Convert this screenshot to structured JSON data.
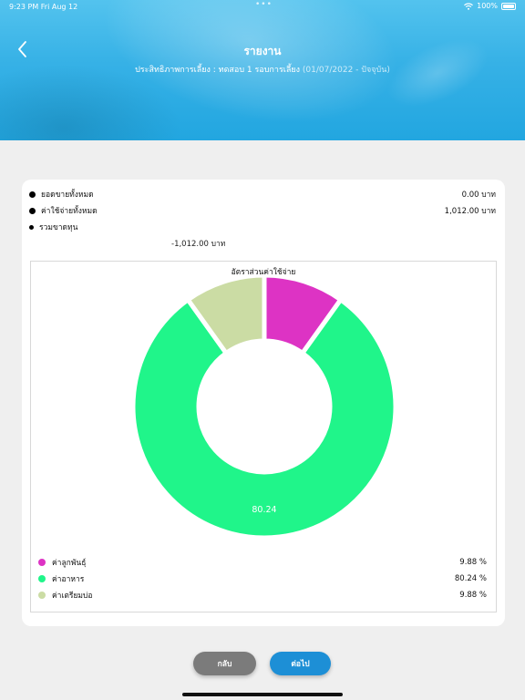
{
  "status": {
    "time": "9:23 PM   Fri Aug 12",
    "dots": "•••",
    "battery": "100%"
  },
  "header": {
    "title": "รายงาน",
    "subtitle_main": "ประสิทธิภาพการเลี้ยง : ทดสอบ 1 รอบการเลี้ยง",
    "subtitle_range": "(01/07/2022 - ปัจจุบัน)"
  },
  "summary": {
    "total_sales_label": "ยอดขายทั้งหมด",
    "total_sales_value": "0.00 บาท",
    "total_expense_label": "ค่าใช้จ่ายทั้งหมด",
    "total_expense_value": "1,012.00 บาท",
    "loss_label": "รวมขาดทุน",
    "loss_value": "-1,012.00 บาท"
  },
  "chart_data": {
    "type": "pie",
    "title": "อัตราส่วนค่าใช้จ่าย",
    "categories": [
      "ค่าลูกพันธุ์",
      "ค่าอาหาร",
      "ค่าเตรียมบ่อ"
    ],
    "values": [
      9.88,
      80.24,
      9.88
    ],
    "colors": [
      "#dd33c4",
      "#20f58a",
      "#cbdca4"
    ],
    "slice_labels": [
      "",
      "80.24",
      ""
    ],
    "value_labels": [
      "9.88 %",
      "80.24 %",
      "9.88 %"
    ],
    "donut": true,
    "legend_position": "bottom"
  },
  "buttons": {
    "back": "กลับ",
    "next": "ต่อไป"
  }
}
